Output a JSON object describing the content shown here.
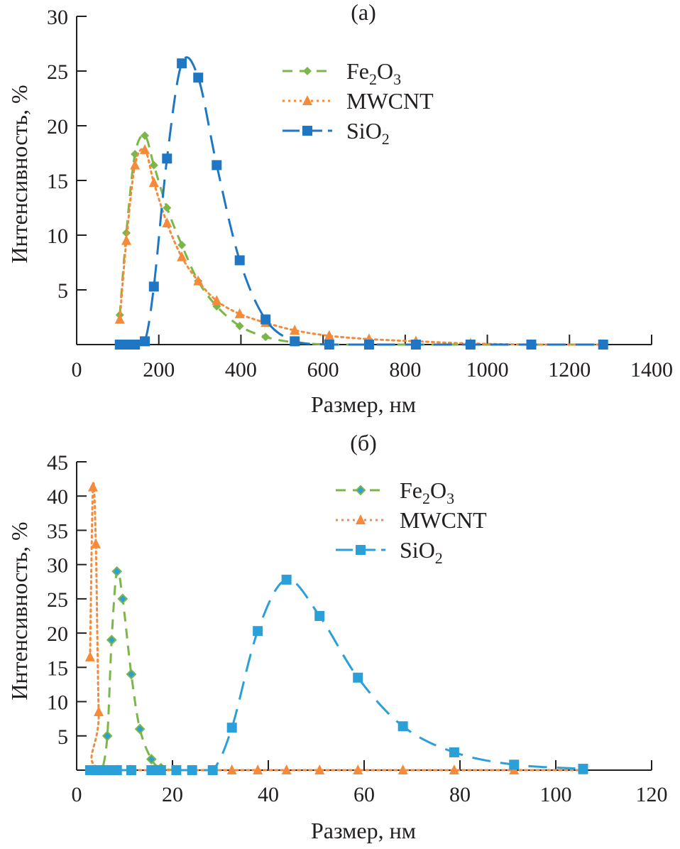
{
  "chart_data": [
    {
      "type": "line",
      "title": "(а)",
      "xlabel": "Размер, нм",
      "ylabel": "Интенсивность, %",
      "xlim": [
        0,
        1400
      ],
      "ylim": [
        0,
        30
      ],
      "xticks": [
        0,
        200,
        400,
        600,
        800,
        1000,
        1200,
        1400
      ],
      "xtick_labels": [
        "0",
        "200",
        "400",
        "600",
        "800",
        "1000",
        "1200",
        "1400"
      ],
      "yticks": [
        5,
        10,
        15,
        20,
        25,
        30
      ],
      "ytick_labels": [
        "5",
        "10",
        "15",
        "20",
        "25",
        "30"
      ],
      "grid": false,
      "legend_position": "top-right",
      "series": [
        {
          "name": "Fe2O3",
          "label_main": "Fe",
          "label_sub1": "2",
          "label_mid": "O",
          "label_sub2": "3",
          "color": "#7ab648",
          "line_style": "dashed",
          "marker": "diamond",
          "x": [
            105,
            121,
            142,
            166,
            188,
            220,
            256,
            296,
            341,
            397,
            460,
            531,
            615,
            712,
            826,
            959,
            1107,
            1282
          ],
          "y": [
            2.7,
            10.2,
            17.4,
            19.1,
            16.4,
            12.5,
            9.1,
            5.8,
            3.5,
            1.7,
            0.7,
            0.2,
            0,
            0,
            0,
            0,
            0,
            0
          ]
        },
        {
          "name": "MWCNT",
          "label_main": "MWCNT",
          "label_sub1": "",
          "label_mid": "",
          "label_sub2": "",
          "color": "#f58a3a",
          "line_style": "dotted",
          "marker": "triangle",
          "x": [
            105,
            121,
            142,
            166,
            188,
            220,
            256,
            296,
            341,
            397,
            460,
            531,
            615,
            712,
            826,
            959,
            1107,
            1282
          ],
          "y": [
            2.3,
            9.5,
            16.4,
            17.8,
            14.8,
            11.1,
            8.0,
            5.8,
            4.0,
            2.8,
            2.0,
            1.3,
            0.8,
            0.5,
            0.3,
            0.1,
            0,
            0
          ]
        },
        {
          "name": "SiO2",
          "label_main": "Si",
          "label_sub1": "",
          "label_mid": "O",
          "label_sub2": "2",
          "color": "#1f77c4",
          "line_style": "long-dash",
          "marker": "square",
          "x": [
            105,
            121,
            142,
            166,
            188,
            220,
            256,
            296,
            341,
            397,
            460,
            531,
            615,
            712,
            826,
            959,
            1107,
            1282
          ],
          "y": [
            0,
            0,
            0,
            0.3,
            5.3,
            17.0,
            25.7,
            24.4,
            16.4,
            7.7,
            2.3,
            0.3,
            0,
            0,
            0,
            0,
            0,
            0
          ]
        }
      ]
    },
    {
      "type": "line",
      "title": "(б)",
      "xlabel": "Размер, нм",
      "ylabel": "Интенсивность, %",
      "xlim": [
        0,
        120
      ],
      "ylim": [
        0,
        45
      ],
      "xticks": [
        0,
        20,
        40,
        60,
        80,
        100,
        120
      ],
      "xtick_labels": [
        "0",
        "20",
        "40",
        "60",
        "80",
        "100",
        "120"
      ],
      "yticks": [
        5,
        10,
        15,
        20,
        25,
        30,
        35,
        40,
        45
      ],
      "ytick_labels": [
        "5",
        "10",
        "15",
        "20",
        "25",
        "30",
        "35",
        "40",
        "45"
      ],
      "grid": false,
      "legend_position": "top-right",
      "series": [
        {
          "name": "Fe2O3",
          "label_main": "Fe",
          "label_sub1": "2",
          "label_mid": "O",
          "label_sub2": "3",
          "color": "#7ab648",
          "marker_fill": "#2a9fd8",
          "line_style": "dashed",
          "marker": "diamond",
          "x": [
            2.8,
            3.4,
            4.0,
            4.6,
            5.3,
            6.4,
            7.3,
            8.4,
            9.6,
            11.4,
            13.2,
            15.6,
            17.6,
            20.8,
            24.1,
            28.4
          ],
          "y": [
            0,
            0,
            0,
            0,
            0,
            5.0,
            19.0,
            29.0,
            25.0,
            14.0,
            6.0,
            1.6,
            0.3,
            0,
            0,
            0
          ]
        },
        {
          "name": "MWCNT",
          "label_main": "MWCNT",
          "label_sub1": "",
          "label_mid": "",
          "label_sub2": "",
          "color": "#f58a3a",
          "line_style": "dotted",
          "marker": "triangle",
          "x": [
            2.8,
            3.4,
            4.0,
            4.6,
            5.3,
            32.4,
            37.8,
            43.8,
            50.7,
            58.7,
            68.1,
            78.8,
            91.3,
            105.7
          ],
          "y": [
            16.5,
            41.3,
            33.0,
            8.5,
            0,
            0,
            0,
            0,
            0,
            0,
            0,
            0,
            0,
            0
          ]
        },
        {
          "name": "SiO2",
          "label_main": "Si",
          "label_sub1": "",
          "label_mid": "O",
          "label_sub2": "2",
          "color": "#2a9fd8",
          "line_style": "long-dash",
          "marker": "square",
          "x": [
            2.8,
            4.6,
            6.4,
            8.4,
            11.4,
            15.6,
            17.6,
            20.8,
            24.1,
            28.4,
            32.4,
            37.8,
            43.8,
            50.7,
            58.7,
            68.1,
            78.8,
            91.3,
            105.7
          ],
          "y": [
            0,
            0,
            0,
            0,
            0,
            0,
            0,
            0,
            0,
            0,
            6.2,
            20.3,
            27.8,
            22.5,
            13.5,
            6.4,
            2.6,
            0.8,
            0.2
          ]
        }
      ]
    }
  ]
}
